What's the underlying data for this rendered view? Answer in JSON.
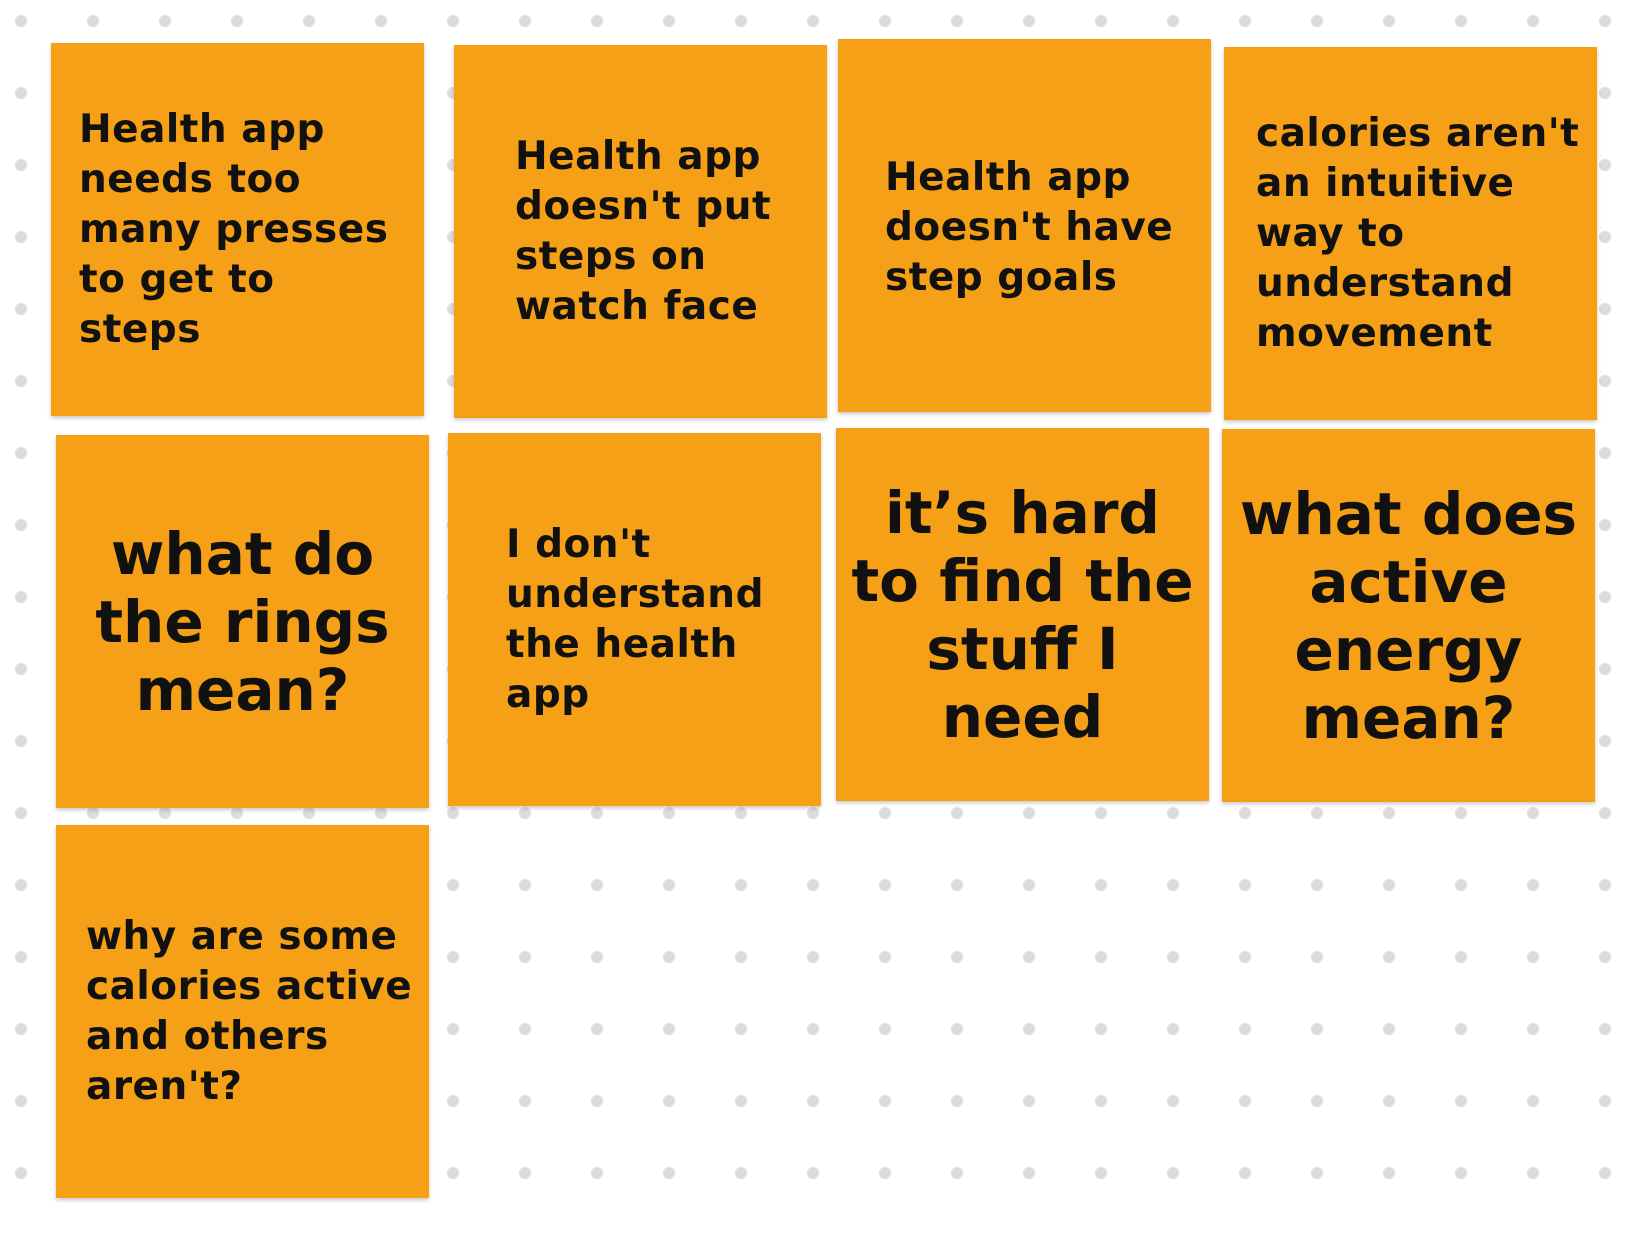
{
  "board": {
    "sticky_color": "#f5a016",
    "dot_color": "#dcdcdc",
    "notes": [
      {
        "text": "Health app\nneeds too\nmany presses\nto get to steps"
      },
      {
        "text": "Health app\ndoesn't put\nsteps on\nwatch face"
      },
      {
        "text": "Health app\ndoesn't have\nstep goals"
      },
      {
        "text": "calories aren't\nan intuitive\nway to\nunderstand\nmovement"
      },
      {
        "text": "what do\nthe rings\nmean?"
      },
      {
        "text": "I don't\nunderstand\nthe health\napp"
      },
      {
        "text": "it’s hard\nto find the\nstuff I\nneed"
      },
      {
        "text": "what does\nactive\nenergy\nmean?"
      },
      {
        "text": "why are some\ncalories active\nand others\naren't?"
      }
    ]
  }
}
